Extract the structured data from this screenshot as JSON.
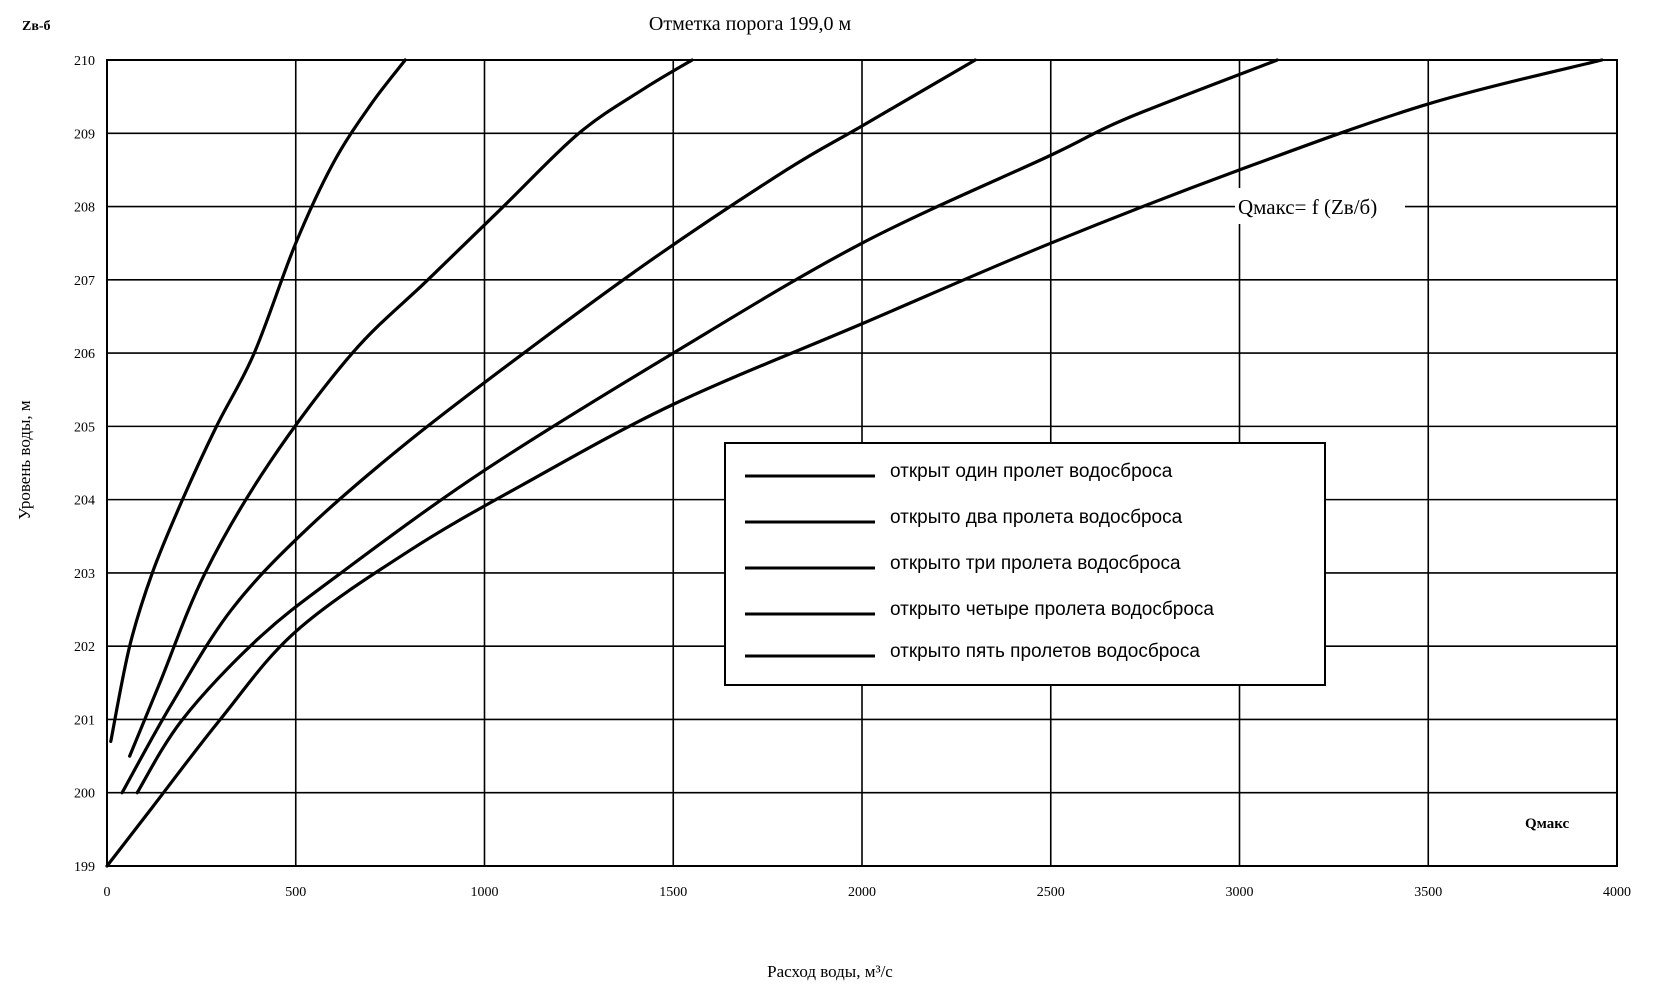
{
  "chart_data": {
    "type": "line",
    "title": "Отметка порога 199,0 м",
    "xlabel": "Расход воды, м³/с",
    "ylabel": "Уровень воды, м",
    "x_axis_tag": "Qмакс",
    "y_axis_tag": "Zв-б",
    "function_label": "Qмакс= f (Zв/б)",
    "xlim": [
      0,
      4000
    ],
    "ylim": [
      199,
      210
    ],
    "x_ticks": [
      0,
      500,
      1000,
      1500,
      2000,
      2500,
      3000,
      3500,
      4000
    ],
    "y_ticks": [
      199,
      200,
      201,
      202,
      203,
      204,
      205,
      206,
      207,
      208,
      209,
      210
    ],
    "grid": true,
    "legend_position": "center-right",
    "series": [
      {
        "name": "открыт один пролет водосброса",
        "x": [
          10,
          60,
          120,
          200,
          290,
          390,
          500,
          600,
          700,
          790
        ],
        "y": [
          200.7,
          202.0,
          203.0,
          204.0,
          205.0,
          206.0,
          207.5,
          208.6,
          209.4,
          210.0
        ]
      },
      {
        "name": "открыто два пролета водосброса",
        "x": [
          60,
          140,
          260,
          430,
          650,
          850,
          1050,
          1250,
          1420,
          1550
        ],
        "y": [
          200.5,
          201.5,
          203.0,
          204.5,
          206.0,
          207.0,
          208.0,
          209.0,
          209.6,
          210.0
        ]
      },
      {
        "name": "открыто три пролета водосброса",
        "x": [
          40,
          170,
          330,
          530,
          800,
          1130,
          1450,
          1800,
          2000,
          2300
        ],
        "y": [
          200.0,
          201.2,
          202.5,
          203.6,
          204.8,
          206.1,
          207.3,
          208.5,
          209.1,
          210.0
        ]
      },
      {
        "name": "открыто четыре пролета водосброса",
        "x": [
          80,
          200,
          400,
          620,
          1000,
          1500,
          2000,
          2500,
          2700,
          3100
        ],
        "y": [
          200.0,
          201.0,
          202.1,
          203.0,
          204.4,
          206.0,
          207.5,
          208.7,
          209.2,
          210.0
        ]
      },
      {
        "name": "открыто пять пролетов водосброса",
        "x": [
          0,
          120,
          300,
          500,
          800,
          1100,
          1500,
          2000,
          2500,
          3000,
          3500,
          3960
        ],
        "y": [
          199.0,
          199.8,
          201.0,
          202.2,
          203.3,
          204.2,
          205.3,
          206.4,
          207.5,
          208.5,
          209.4,
          210.0
        ]
      }
    ]
  }
}
